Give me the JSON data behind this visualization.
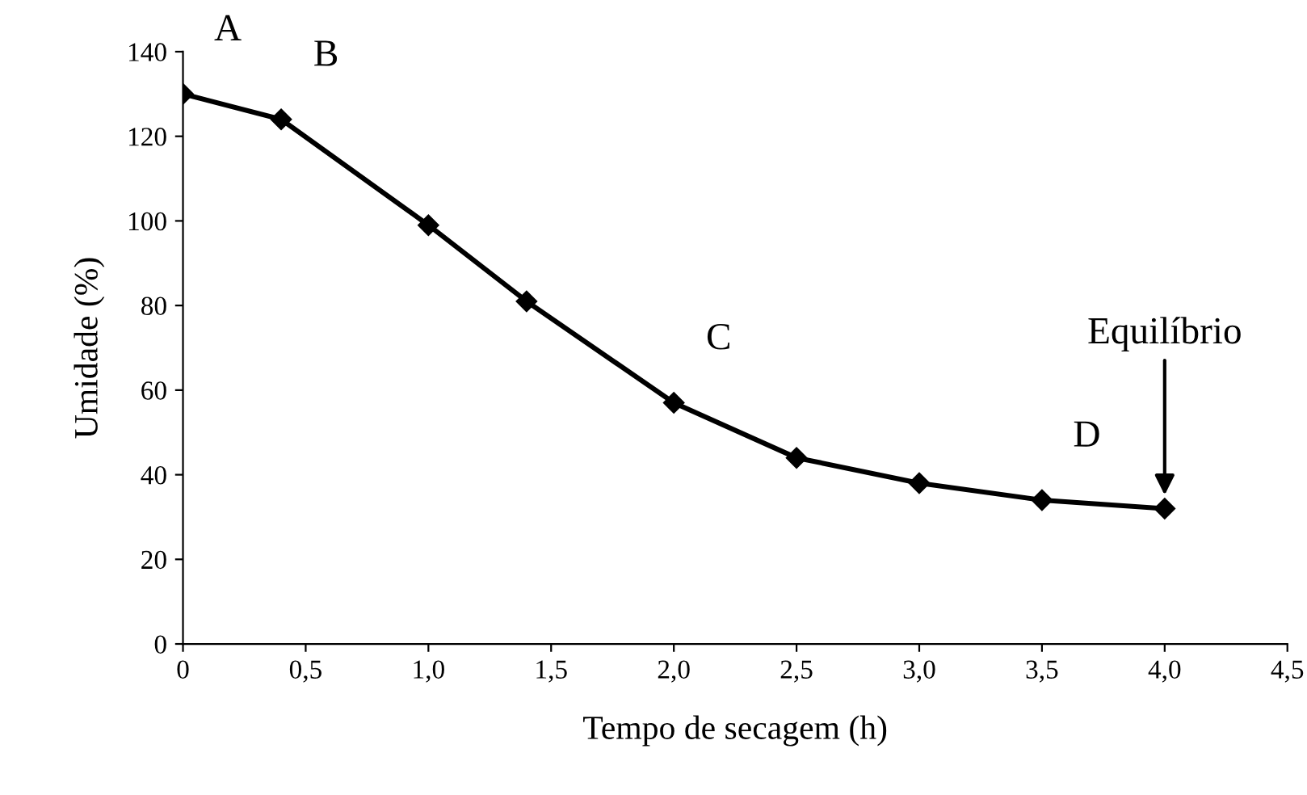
{
  "chart_data": {
    "type": "line",
    "xlabel": "Tempo de secagem (h)",
    "ylabel": "Umidade (%)",
    "x": [
      0,
      0.4,
      1.0,
      1.4,
      2.0,
      2.5,
      3.0,
      3.5,
      4.0
    ],
    "series": [
      {
        "color": "#000000",
        "values": [
          130,
          124,
          99,
          81,
          57,
          44,
          38,
          34,
          32
        ]
      }
    ],
    "marker": "diamond",
    "line_style": "solid",
    "grid": false,
    "legend": false,
    "xlim": [
      0,
      4.5
    ],
    "ylim": [
      0,
      140
    ],
    "xticks": [
      0,
      {
        "value": 0.5,
        "label": "0,5"
      },
      {
        "value": 1.0,
        "label": "1,0"
      },
      {
        "value": 1.5,
        "label": "1,5"
      },
      {
        "value": 2.0,
        "label": "2,0"
      },
      {
        "value": 2.5,
        "label": "2,5"
      },
      {
        "value": 3.0,
        "label": "3,0"
      },
      {
        "value": 3.5,
        "label": "3,5"
      },
      {
        "value": 4.0,
        "label": "4,0"
      },
      {
        "value": 4.5,
        "label": "4,5"
      }
    ],
    "yticks": [
      0,
      20,
      40,
      60,
      80,
      100,
      120,
      140
    ],
    "annotations": [
      {
        "text": "A",
        "x": 0,
        "y": 130
      },
      {
        "text": "B",
        "x": 0.4,
        "y": 124
      },
      {
        "text": "C",
        "x": 2.0,
        "y": 57
      },
      {
        "text": "D",
        "x": 3.5,
        "y": 34
      },
      "Equilíbrio"
    ]
  }
}
